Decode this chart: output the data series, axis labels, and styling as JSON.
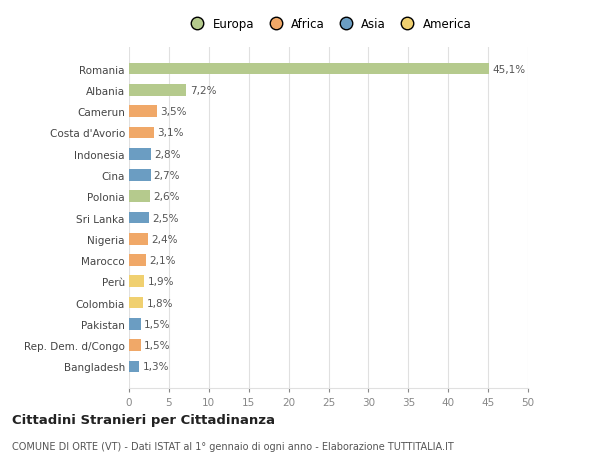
{
  "countries": [
    "Romania",
    "Albania",
    "Camerun",
    "Costa d'Avorio",
    "Indonesia",
    "Cina",
    "Polonia",
    "Sri Lanka",
    "Nigeria",
    "Marocco",
    "Perù",
    "Colombia",
    "Pakistan",
    "Rep. Dem. d/Congo",
    "Bangladesh"
  ],
  "values": [
    45.1,
    7.2,
    3.5,
    3.1,
    2.8,
    2.7,
    2.6,
    2.5,
    2.4,
    2.1,
    1.9,
    1.8,
    1.5,
    1.5,
    1.3
  ],
  "labels": [
    "45,1%",
    "7,2%",
    "3,5%",
    "3,1%",
    "2,8%",
    "2,7%",
    "2,6%",
    "2,5%",
    "2,4%",
    "2,1%",
    "1,9%",
    "1,8%",
    "1,5%",
    "1,5%",
    "1,3%"
  ],
  "continents": [
    "Europa",
    "Europa",
    "Africa",
    "Africa",
    "Asia",
    "Asia",
    "Europa",
    "Asia",
    "Africa",
    "Africa",
    "America",
    "America",
    "Asia",
    "Africa",
    "Asia"
  ],
  "colors": {
    "Europa": "#b5ca8d",
    "Africa": "#f0a868",
    "Asia": "#6b9dc2",
    "America": "#f0d070"
  },
  "xlim": [
    0,
    50
  ],
  "xticks": [
    0,
    5,
    10,
    15,
    20,
    25,
    30,
    35,
    40,
    45,
    50
  ],
  "title": "Cittadini Stranieri per Cittadinanza",
  "subtitle": "COMUNE DI ORTE (VT) - Dati ISTAT al 1° gennaio di ogni anno - Elaborazione TUTTITALIA.IT",
  "background_color": "#ffffff",
  "grid_color": "#e0e0e0",
  "bar_height": 0.55,
  "label_fontsize": 7.5,
  "tick_fontsize": 7.5,
  "title_fontsize": 9.5,
  "subtitle_fontsize": 7,
  "legend_fontsize": 8.5
}
